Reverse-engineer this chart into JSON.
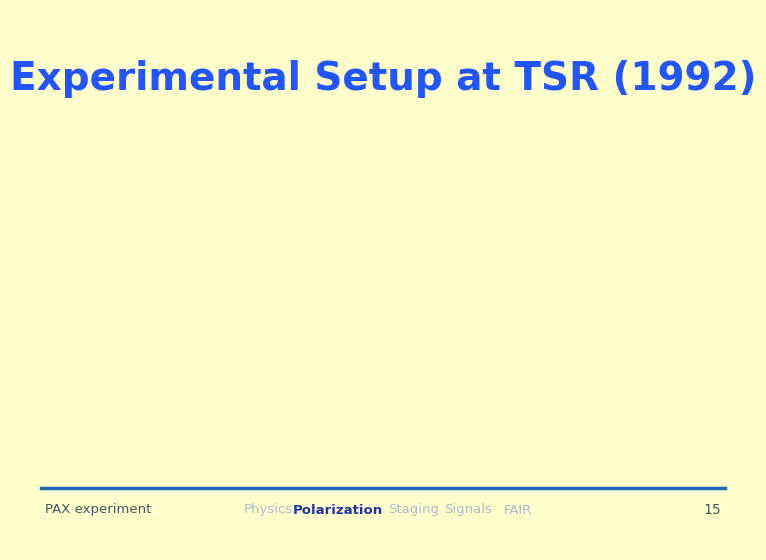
{
  "title": "Experimental Setup at TSR (1992)",
  "title_color": "#2255FF",
  "title_fontsize": 28,
  "background_color": "#FFFFCC",
  "footer_left": "PAX experiment",
  "footer_nav": [
    "Physics",
    "Polarization",
    "Staging",
    "Signals",
    "FAIR"
  ],
  "footer_nav_bold": "Polarization",
  "footer_page": "15",
  "footer_color_normal": "#AABBCC",
  "footer_color_bold": "#2233AA",
  "footer_left_color": "#445566",
  "footer_page_color": "#445566",
  "line_color": "#2266BB",
  "line_thickness": 2.5
}
